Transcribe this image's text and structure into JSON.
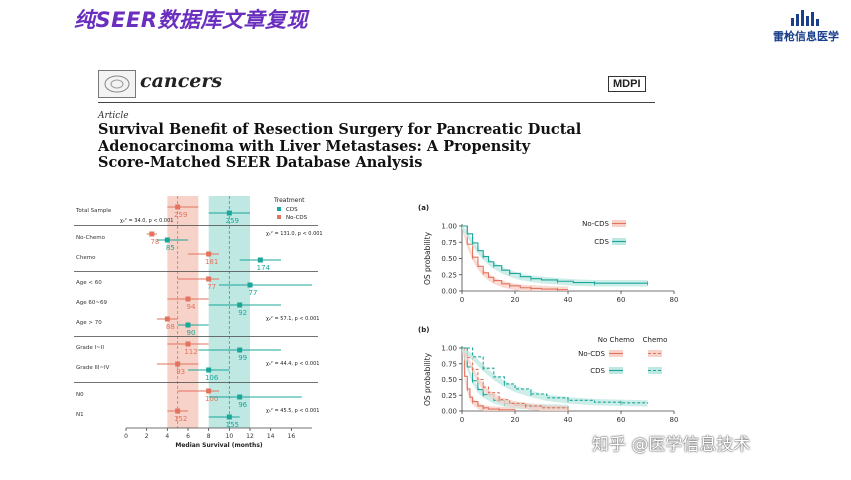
{
  "banner": {
    "title": "纯SEER数据库文章复现",
    "brand_name": "雷枪信息医学",
    "brand_icon": "bar-chart-logo-icon",
    "title_color": "#6b2fbf",
    "brand_color": "#1a3e8c"
  },
  "paper": {
    "journal": "cancers",
    "publisher": "MDPI",
    "article_type": "Article",
    "title_lines": [
      "Survival Benefit of Resection Surgery for Pancreatic Ductal",
      "Adenocarcinoma with Liver Metastases: A Propensity",
      "Score-Matched SEER Database Analysis"
    ]
  },
  "watermark": "知乎 @医学信息技术",
  "colors": {
    "cds": "#1aa79a",
    "no_cds": "#e3735e",
    "cds_band": "#bfe8e2",
    "no_cds_band": "#f7d2c8"
  },
  "chart_data": [
    {
      "type": "forest",
      "xlabel": "Median Survival (months)",
      "xlim": [
        0,
        18
      ],
      "xticks": [
        0,
        2,
        4,
        6,
        8,
        10,
        12,
        14,
        16
      ],
      "legend": {
        "title": "Treatment",
        "items": [
          "CDS",
          "No-CDS"
        ],
        "placement": "top-right"
      },
      "overall_lines": {
        "no_cds": 5,
        "cds": 10
      },
      "bands": {
        "no_cds": [
          4,
          7
        ],
        "cds": [
          8,
          12
        ]
      },
      "rows": [
        {
          "label": "Total Sample",
          "no_cds": {
            "est": 5,
            "lo": 4,
            "hi": 7,
            "n": "259"
          },
          "cds": {
            "est": 10,
            "lo": 8,
            "hi": 12,
            "n": "259"
          },
          "stat": "χ₁² = 34.0, p < 0.001",
          "stat_side": "left"
        },
        {
          "label": "No-Chemo",
          "no_cds": {
            "est": 2.5,
            "lo": 2,
            "hi": 3,
            "n": "78"
          },
          "cds": {
            "est": 4,
            "lo": 3,
            "hi": 6,
            "n": "85"
          },
          "stat": "χ₁² = 131.0, p < 0.001",
          "stat_side": "right"
        },
        {
          "label": "Chemo",
          "no_cds": {
            "est": 8,
            "lo": 6,
            "hi": 9,
            "n": "181"
          },
          "cds": {
            "est": 13,
            "lo": 11,
            "hi": 15,
            "n": "174"
          },
          "stat": "",
          "stat_side": "right"
        },
        {
          "label": "Age < 60",
          "no_cds": {
            "est": 8,
            "lo": 5,
            "hi": 9,
            "n": "77"
          },
          "cds": {
            "est": 12,
            "lo": 9,
            "hi": 18,
            "n": "77"
          },
          "stat": "",
          "stat_side": "right"
        },
        {
          "label": "Age 60~69",
          "no_cds": {
            "est": 6,
            "lo": 4,
            "hi": 8,
            "n": "94"
          },
          "cds": {
            "est": 11,
            "lo": 8,
            "hi": 15,
            "n": "92"
          },
          "stat": "",
          "stat_side": "right"
        },
        {
          "label": "Age > 70",
          "no_cds": {
            "est": 4,
            "lo": 3,
            "hi": 5,
            "n": "88"
          },
          "cds": {
            "est": 6,
            "lo": 5,
            "hi": 8,
            "n": "90"
          },
          "stat": "χ₂² = 57.1, p < 0.001",
          "stat_side": "right"
        },
        {
          "label": "Grade I~II",
          "no_cds": {
            "est": 6,
            "lo": 4,
            "hi": 8,
            "n": "112"
          },
          "cds": {
            "est": 11,
            "lo": 7,
            "hi": 15,
            "n": "99"
          },
          "stat": "",
          "stat_side": "right"
        },
        {
          "label": "Grade III~IV",
          "no_cds": {
            "est": 5,
            "lo": 3,
            "hi": 7,
            "n": "93"
          },
          "cds": {
            "est": 8,
            "lo": 6,
            "hi": 10,
            "n": "106"
          },
          "stat": "χ₁² = 44.4, p < 0.001",
          "stat_side": "right"
        },
        {
          "label": "N0",
          "no_cds": {
            "est": 8,
            "lo": 5,
            "hi": 9,
            "n": "100"
          },
          "cds": {
            "est": 11,
            "lo": 8,
            "hi": 17,
            "n": "96"
          },
          "stat": "",
          "stat_side": "right"
        },
        {
          "label": "N1",
          "no_cds": {
            "est": 5,
            "lo": 4,
            "hi": 6,
            "n": "152"
          },
          "cds": {
            "est": 10,
            "lo": 8,
            "hi": 11,
            "n": "155"
          },
          "stat": "χ₁² = 45.5, p < 0.001",
          "stat_side": "right"
        }
      ],
      "group_separators_after": [
        0,
        2,
        5,
        7
      ]
    },
    {
      "type": "line",
      "panel": "(a)",
      "xlabel": "",
      "ylabel": "OS probability",
      "xlim": [
        0,
        80
      ],
      "ylim": [
        0,
        1
      ],
      "xticks": [
        0,
        20,
        40,
        60,
        80
      ],
      "yticks": [
        "0.00",
        "0.25",
        "0.50",
        "0.75",
        "1.00"
      ],
      "legend": [
        "No-CDS",
        "CDS"
      ],
      "series": [
        {
          "name": "No-CDS",
          "x": [
            0,
            2,
            4,
            6,
            8,
            10,
            12,
            15,
            18,
            22,
            26,
            30,
            36,
            40
          ],
          "y": [
            1.0,
            0.72,
            0.52,
            0.38,
            0.28,
            0.21,
            0.16,
            0.11,
            0.08,
            0.05,
            0.04,
            0.03,
            0.02,
            0.02
          ]
        },
        {
          "name": "CDS",
          "x": [
            0,
            2,
            4,
            6,
            8,
            10,
            12,
            15,
            18,
            22,
            26,
            30,
            36,
            42,
            50,
            60,
            70
          ],
          "y": [
            1.0,
            0.88,
            0.74,
            0.62,
            0.53,
            0.45,
            0.39,
            0.32,
            0.27,
            0.22,
            0.19,
            0.17,
            0.15,
            0.13,
            0.12,
            0.12,
            0.12
          ]
        }
      ]
    },
    {
      "type": "line",
      "panel": "(b)",
      "xlabel": "",
      "ylabel": "OS probability",
      "xlim": [
        0,
        80
      ],
      "ylim": [
        0,
        1
      ],
      "xticks": [
        0,
        20,
        40,
        60,
        80
      ],
      "yticks": [
        "0.00",
        "0.25",
        "0.50",
        "0.75",
        "1.00"
      ],
      "legend_columns": [
        "No Chemo",
        "Chemo"
      ],
      "legend_rows": [
        "No-CDS",
        "CDS"
      ],
      "series": [
        {
          "name": "No-CDS / No Chemo",
          "style": "solid",
          "x": [
            0,
            1,
            2,
            3,
            4,
            6,
            8,
            10,
            14,
            20
          ],
          "y": [
            1.0,
            0.55,
            0.35,
            0.22,
            0.15,
            0.08,
            0.05,
            0.03,
            0.02,
            0.01
          ]
        },
        {
          "name": "CDS / No Chemo",
          "style": "solid",
          "x": [
            0,
            2,
            4,
            6,
            8,
            12,
            16,
            20,
            26,
            32,
            40
          ],
          "y": [
            1.0,
            0.7,
            0.48,
            0.34,
            0.26,
            0.17,
            0.12,
            0.09,
            0.07,
            0.06,
            0.05
          ]
        },
        {
          "name": "No-CDS / Chemo",
          "style": "dashed",
          "x": [
            0,
            2,
            4,
            6,
            8,
            10,
            14,
            18,
            24,
            30,
            40
          ],
          "y": [
            1.0,
            0.85,
            0.66,
            0.5,
            0.38,
            0.29,
            0.18,
            0.12,
            0.08,
            0.05,
            0.03
          ]
        },
        {
          "name": "CDS / Chemo",
          "style": "dashed",
          "x": [
            0,
            4,
            8,
            12,
            16,
            20,
            26,
            32,
            40,
            50,
            60,
            70
          ],
          "y": [
            1.0,
            0.86,
            0.68,
            0.54,
            0.43,
            0.35,
            0.27,
            0.21,
            0.17,
            0.14,
            0.13,
            0.12
          ]
        }
      ]
    }
  ]
}
